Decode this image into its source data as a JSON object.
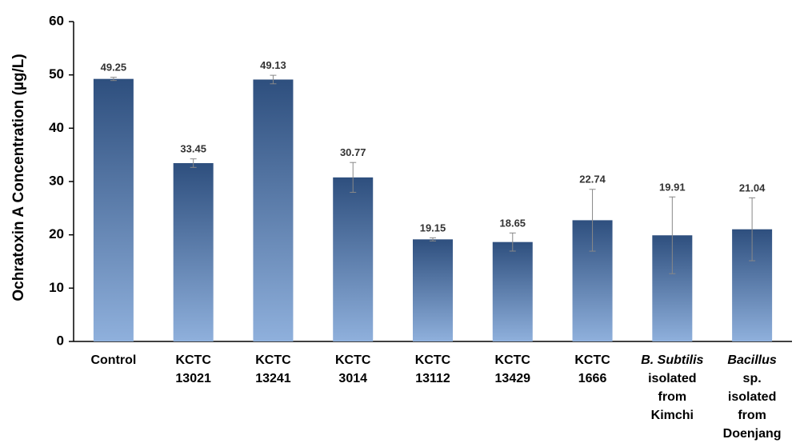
{
  "chart_data": {
    "type": "bar",
    "title": "",
    "xlabel": "",
    "ylabel": "Ochratoxin A Concentration (µg/L)",
    "ylim": [
      0,
      60
    ],
    "yticks": [
      0,
      10,
      20,
      30,
      40,
      50,
      60
    ],
    "grid": false,
    "legend": "none",
    "bar_color_top": "#2e4f7e",
    "bar_color_bottom": "#8fb0dc",
    "categories": [
      {
        "lines": [
          {
            "text": "Control",
            "italic": false
          }
        ]
      },
      {
        "lines": [
          {
            "text": "KCTC",
            "italic": false
          },
          {
            "text": "13021",
            "italic": false
          }
        ]
      },
      {
        "lines": [
          {
            "text": "KCTC",
            "italic": false
          },
          {
            "text": "13241",
            "italic": false
          }
        ]
      },
      {
        "lines": [
          {
            "text": "KCTC",
            "italic": false
          },
          {
            "text": "3014",
            "italic": false
          }
        ]
      },
      {
        "lines": [
          {
            "text": "KCTC",
            "italic": false
          },
          {
            "text": "13112",
            "italic": false
          }
        ]
      },
      {
        "lines": [
          {
            "text": "KCTC",
            "italic": false
          },
          {
            "text": "13429",
            "italic": false
          }
        ]
      },
      {
        "lines": [
          {
            "text": "KCTC",
            "italic": false
          },
          {
            "text": "1666",
            "italic": false
          }
        ]
      },
      {
        "lines": [
          {
            "text": "B. Subtilis",
            "italic": true
          },
          {
            "text": "isolated",
            "italic": false
          },
          {
            "text": "from",
            "italic": false
          },
          {
            "text": "Kimchi",
            "italic": false
          }
        ]
      },
      {
        "lines": [
          {
            "text": "Bacillus",
            "italic": true
          },
          {
            "text": "sp.",
            "italic": false
          },
          {
            "text": "isolated",
            "italic": false
          },
          {
            "text": "from",
            "italic": false
          },
          {
            "text": "Doenjang",
            "italic": false
          }
        ]
      }
    ],
    "values": [
      49.25,
      33.45,
      49.13,
      30.77,
      19.15,
      18.65,
      22.74,
      19.91,
      21.04
    ],
    "labels": [
      "49.25",
      "33.45",
      "49.13",
      "30.77",
      "19.15",
      "18.65",
      "22.74",
      "19.91",
      "21.04"
    ],
    "errors": [
      0.3,
      0.8,
      0.8,
      2.8,
      0.3,
      1.7,
      5.8,
      7.2,
      5.9
    ]
  }
}
